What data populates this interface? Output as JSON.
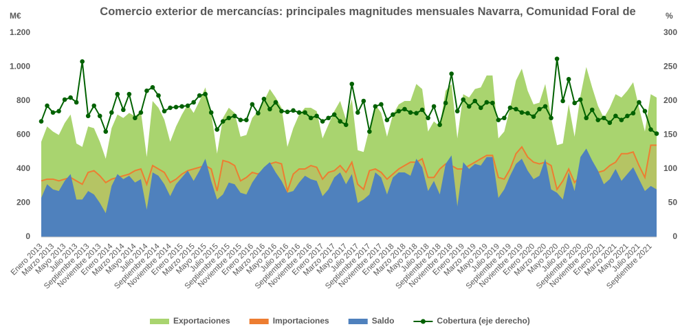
{
  "chart_data": {
    "type": "area",
    "title": "Comercio exterior de mercancías: principales magnitudes mensuales Navarra, Comunidad Foral de",
    "y_unit": "M€",
    "y2_unit": "%",
    "categories": [
      "Enero 2013",
      null,
      "Marzo 2013",
      null,
      "Mayo 2013",
      null,
      "Julio 2013",
      null,
      "Septiembre 2013",
      null,
      "Noviembre 2013",
      null,
      "Enero 2014",
      null,
      "Marzo 2014",
      null,
      "Mayo 2014",
      null,
      "Julio 2014",
      null,
      "Septiembre 2014",
      null,
      "Noviembre 2014",
      null,
      "Enero 2015",
      null,
      "Marzo 2015",
      null,
      "Mayo 2015",
      null,
      "Julio 2015",
      null,
      "Septiembre 2015",
      null,
      "Noviembre 2015",
      null,
      "Enero 2016",
      null,
      "Marzo 2016",
      null,
      "Mayo 2016",
      null,
      "Julio 2016",
      null,
      "Septiembre 2016",
      null,
      "Noviembre 2016",
      null,
      "Enero 2017",
      null,
      "Marzo 2017",
      null,
      "Mayo 2017",
      null,
      "Julio 2017",
      null,
      "Septiembre 2017",
      null,
      "Noviembre 2017",
      null,
      "Enero 2018",
      null,
      "Marzo 2018",
      null,
      "Mayo 2018",
      null,
      "Julio 2018",
      null,
      "Septiembre 2018",
      null,
      "Noviembre 2018",
      null,
      "Enero 2019",
      null,
      "Marzo 2019",
      null,
      "Mayo 2019",
      null,
      "Julio 2019",
      null,
      "Septiembre 2019",
      null,
      "Noviembre 2019",
      null,
      "Enero 2020",
      null,
      "Marzo 2020",
      null,
      "Mayo 2020",
      null,
      "Julio 2020",
      null,
      "Septiembre 2020",
      null,
      "Noviembre 2020",
      null,
      "Enero 2021",
      null,
      "Marzo 2021",
      null,
      "Mayo 2021",
      null,
      "Julio 2021",
      null,
      "Septiembre 2021",
      null
    ],
    "series": [
      {
        "name": "Exportaciones",
        "color": "#a9d46f",
        "kind": "area",
        "values": [
          560,
          650,
          620,
          600,
          670,
          720,
          550,
          530,
          650,
          640,
          560,
          460,
          640,
          720,
          700,
          730,
          710,
          740,
          470,
          800,
          760,
          690,
          560,
          650,
          720,
          780,
          730,
          800,
          880,
          730,
          490,
          700,
          760,
          730,
          590,
          600,
          700,
          740,
          800,
          870,
          820,
          760,
          530,
          640,
          720,
          760,
          760,
          740,
          580,
          660,
          740,
          800,
          690,
          810,
          510,
          500,
          640,
          780,
          730,
          590,
          720,
          780,
          800,
          800,
          900,
          870,
          620,
          680,
          650,
          860,
          900,
          580,
          840,
          820,
          870,
          880,
          950,
          950,
          580,
          620,
          760,
          920,
          990,
          860,
          780,
          790,
          900,
          700,
          540,
          550,
          780,
          590,
          830,
          1000,
          880,
          770,
          700,
          760,
          840,
          820,
          860,
          910,
          760,
          620,
          840,
          820
        ]
      },
      {
        "name": "Importaciones",
        "color": "#ed7d31",
        "kind": "area-line",
        "values": [
          330,
          340,
          340,
          330,
          340,
          350,
          330,
          310,
          380,
          390,
          360,
          320,
          340,
          350,
          360,
          370,
          390,
          400,
          310,
          420,
          400,
          380,
          320,
          340,
          370,
          390,
          400,
          410,
          420,
          400,
          270,
          450,
          440,
          420,
          330,
          350,
          380,
          370,
          390,
          430,
          440,
          430,
          270,
          370,
          400,
          400,
          420,
          410,
          340,
          380,
          390,
          420,
          380,
          440,
          310,
          280,
          390,
          400,
          380,
          340,
          370,
          400,
          420,
          440,
          440,
          460,
          350,
          350,
          400,
          430,
          420,
          400,
          400,
          420,
          440,
          460,
          480,
          480,
          350,
          340,
          400,
          490,
          530,
          470,
          440,
          430,
          440,
          420,
          280,
          330,
          400,
          320,
          360,
          480,
          430,
          380,
          390,
          420,
          440,
          490,
          490,
          500,
          420,
          350,
          540,
          540
        ]
      },
      {
        "name": "Saldo",
        "color": "#4f81bd",
        "kind": "area",
        "values": [
          230,
          310,
          280,
          270,
          330,
          370,
          220,
          220,
          270,
          250,
          200,
          140,
          300,
          370,
          340,
          360,
          320,
          340,
          160,
          380,
          360,
          310,
          240,
          310,
          350,
          390,
          330,
          390,
          460,
          330,
          220,
          250,
          320,
          310,
          260,
          250,
          320,
          370,
          410,
          440,
          380,
          330,
          260,
          270,
          320,
          360,
          340,
          330,
          240,
          280,
          350,
          380,
          310,
          370,
          200,
          220,
          250,
          380,
          350,
          250,
          350,
          380,
          380,
          360,
          460,
          410,
          270,
          330,
          250,
          430,
          480,
          180,
          440,
          400,
          430,
          420,
          470,
          470,
          230,
          280,
          360,
          430,
          460,
          390,
          340,
          360,
          460,
          280,
          260,
          220,
          380,
          270,
          470,
          520,
          450,
          390,
          310,
          340,
          400,
          330,
          370,
          410,
          340,
          270,
          300,
          280
        ]
      },
      {
        "name": "Cobertura (eje derecho)",
        "color": "#006100",
        "kind": "line",
        "axis": "y2",
        "values": [
          170,
          193,
          183,
          185,
          202,
          205,
          198,
          258,
          178,
          193,
          178,
          155,
          183,
          210,
          187,
          210,
          175,
          183,
          215,
          220,
          208,
          185,
          190,
          191,
          192,
          193,
          198,
          208,
          210,
          183,
          158,
          170,
          175,
          178,
          172,
          172,
          195,
          182,
          203,
          188,
          198,
          185,
          184,
          186,
          183,
          183,
          175,
          178,
          170,
          175,
          180,
          170,
          165,
          225,
          183,
          200,
          155,
          192,
          195,
          172,
          180,
          185,
          188,
          183,
          182,
          187,
          175,
          192,
          165,
          197,
          240,
          185,
          202,
          192,
          200,
          190,
          198,
          197,
          172,
          175,
          190,
          188,
          183,
          182,
          177,
          188,
          192,
          175,
          262,
          200,
          232,
          197,
          202,
          175,
          187,
          172,
          175,
          168,
          178,
          172,
          178,
          182,
          198,
          185,
          158,
          152
        ]
      }
    ],
    "ylim": [
      0,
      1200
    ],
    "yticks": [
      0,
      200,
      400,
      600,
      800,
      {
        "value": 1000,
        "label": "1.000"
      },
      {
        "value": 1200,
        "label": "1.200"
      }
    ],
    "y2lim": [
      0,
      300
    ],
    "y2ticks": [
      0,
      50,
      100,
      150,
      200,
      250,
      300
    ],
    "grid": false,
    "legend": "bottom"
  }
}
